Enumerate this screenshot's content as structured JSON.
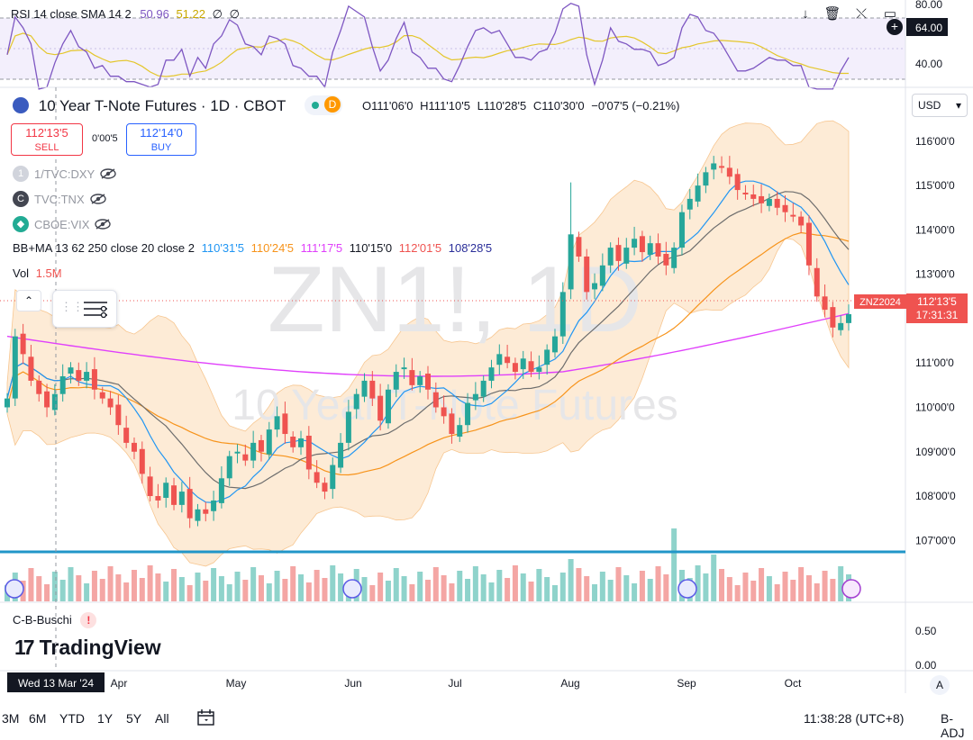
{
  "toolbar_rsi": {
    "label": "RSI 14 close SMA 14 2",
    "rsi_value": "50.96",
    "sma_value": "51.22",
    "extra1": "∅",
    "extra2": "∅",
    "axis_80": "80.00",
    "axis_64": "64.00",
    "axis_40": "40.00"
  },
  "header": {
    "title": "10 Year T-Note Futures · 1D · CBOT",
    "d_badge": "D",
    "ohlc_o": "O111'06'0",
    "ohlc_h": "H111'10'5",
    "ohlc_l": "L110'28'5",
    "ohlc_c": "C110'30'0",
    "change": "−0'07'5 (−0.21%)"
  },
  "trade": {
    "sell_price": "112'13'5",
    "sell_label": "SELL",
    "spread": "0'00'5",
    "buy_price": "112'14'0",
    "buy_label": "BUY"
  },
  "compare_symbols": [
    {
      "label": "1/TVC:DXY",
      "badge": "1",
      "color": "#d1d4dc"
    },
    {
      "label": "TVC:TNX",
      "badge": "C",
      "color": "#434651"
    },
    {
      "label": "CBOE:VIX",
      "badge": "◆",
      "color": "#22ab94"
    }
  ],
  "bbma": {
    "label": "BB+MA 13 62 250 close 20 close 2",
    "v1": "110'31'5",
    "v2": "110'24'5",
    "v3": "111'17'5",
    "v4": "110'15'0",
    "v5": "112'01'5",
    "v6": "108'28'5"
  },
  "volume": {
    "label": "Vol",
    "value": "1.5M"
  },
  "currency": "USD",
  "price_tag": {
    "symbol": "ZNZ2024",
    "price": "112'13'5",
    "countdown": "17:31:31"
  },
  "watermark": {
    "symbol": "ZN1!, 1D",
    "name": "10 Year T-Note Futures"
  },
  "indicator_pane": {
    "label": "C-B-Buschi",
    "axis_050": "0.50",
    "axis_000": "0.00"
  },
  "logo_text": "TradingView",
  "time_axis": {
    "crosshair_date": "Wed 13 Mar '24",
    "months": [
      "Apr",
      "May",
      "Jun",
      "Jul",
      "Aug",
      "Sep",
      "Oct"
    ]
  },
  "bottom": {
    "ranges": [
      "3M",
      "6M",
      "YTD",
      "1Y",
      "5Y",
      "All"
    ],
    "clock": "11:38:28 (UTC+8)",
    "adj": "B-ADJ"
  },
  "colors": {
    "up": "#26a69a",
    "down": "#ef5350",
    "bb_fill": "#fde7cf",
    "ma_fast": "#2196f3",
    "ma_mid": "#f7931a",
    "ma_slow": "#e040fb",
    "ma_dark": "#6d6d6d",
    "rsi": "#7e57c2",
    "rsi_sma": "#e4c62b",
    "hline": "#2196c8"
  },
  "chart_data": {
    "type": "candlestick",
    "price_axis": [
      "116'00'0",
      "115'00'0",
      "114'00'0",
      "113'00'0",
      "112'00'0",
      "111'00'0",
      "110'00'0",
      "109'00'0",
      "108'00'0",
      "107'00'0"
    ],
    "ylim": [
      106.6,
      116.2
    ],
    "months": [
      "Apr",
      "May",
      "Jun",
      "Jul",
      "Aug",
      "Sep",
      "Oct"
    ],
    "closes": [
      110.2,
      111.6,
      111.2,
      110.6,
      110.3,
      110.0,
      110.3,
      110.7,
      110.9,
      110.6,
      110.8,
      110.4,
      110.2,
      110.0,
      109.6,
      109.2,
      109.0,
      108.5,
      108.0,
      107.9,
      108.3,
      107.8,
      108.1,
      107.5,
      107.7,
      107.6,
      107.9,
      108.4,
      108.9,
      109.0,
      108.8,
      109.2,
      109.0,
      109.5,
      109.8,
      109.4,
      109.1,
      109.3,
      108.6,
      108.3,
      108.1,
      108.7,
      109.2,
      109.9,
      110.3,
      110.6,
      110.2,
      109.7,
      110.4,
      110.8,
      110.9,
      110.5,
      110.7,
      110.4,
      110.0,
      109.8,
      109.4,
      109.6,
      110.1,
      110.3,
      110.6,
      110.9,
      111.2,
      111.0,
      110.8,
      111.1,
      110.8,
      110.9,
      111.3,
      111.6,
      112.6,
      113.9,
      113.4,
      112.6,
      112.8,
      113.2,
      113.6,
      113.3,
      113.6,
      113.8,
      113.5,
      113.7,
      113.4,
      113.2,
      113.6,
      114.4,
      114.7,
      115.0,
      115.3,
      115.5,
      115.4,
      115.2,
      114.9,
      114.8,
      114.7,
      114.6,
      114.7,
      114.5,
      114.4,
      114.3,
      114.1,
      113.2,
      112.5,
      112.2,
      111.8,
      111.9,
      112.1
    ],
    "rsi_axis": [
      "80.00",
      "64.00",
      "40.00"
    ]
  }
}
